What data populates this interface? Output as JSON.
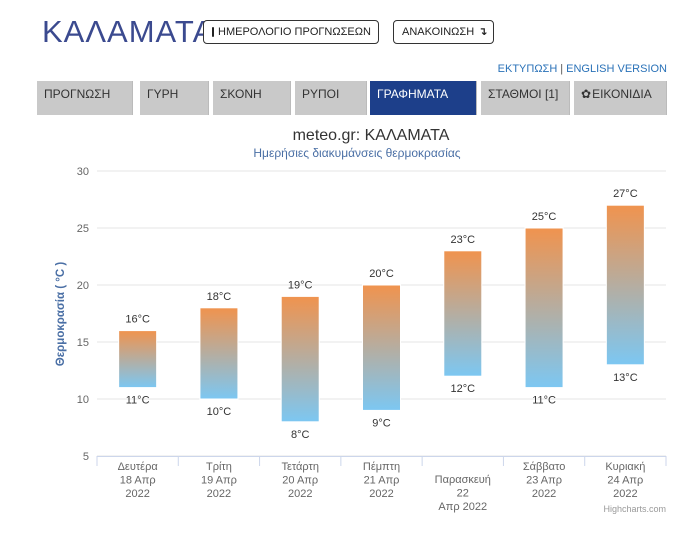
{
  "header": {
    "city": "ΚΑΛΑΜΑΤΑ",
    "calendar_button": "ΗΜΕΡΟΛΟΓΙΟ ΠΡΟΓΝΩΣΕΩΝ",
    "announce_button": "ΑΝΑΚΟΙΝΩΣΗ",
    "print_link": "ΕΚΤΥΠΩΣΗ",
    "link_separator": "|",
    "english_link": "ENGLISH VERSION"
  },
  "nav": {
    "items": [
      {
        "label": "ΠΡΟΓΝΩΣΗ"
      },
      {
        "label": "ΓΥΡΗ"
      },
      {
        "label": "ΣΚΟΝΗ"
      },
      {
        "label": "ΡΥΠΟΙ"
      },
      {
        "label": "ΓΡΑΦΗΜΑΤΑ"
      },
      {
        "label": "ΣΤΑΘΜΟΙ [1]"
      },
      {
        "label": "ΕΙΚΟΝΙΔΙΑ"
      }
    ],
    "active_index": 4
  },
  "chart_data": {
    "type": "bar",
    "title": "meteo.gr: ΚΑΛΑΜΑΤΑ",
    "subtitle": "Ημερήσιες διακυμάνσεις θερμοκρασίας",
    "ylabel": "Θερμοκρασία ( °C )",
    "ylim": [
      5,
      30
    ],
    "yticks": [
      "5",
      "10",
      "15",
      "20",
      "25",
      "30"
    ],
    "categories": [
      [
        "Δευτέρα",
        "18 Απρ",
        "2022"
      ],
      [
        "Τρίτη",
        "19 Απρ",
        "2022"
      ],
      [
        "Τετάρτη",
        "20 Απρ",
        "2022"
      ],
      [
        "Πέμπτη",
        "21 Απρ",
        "2022"
      ],
      [
        "Παρασκευή",
        "22",
        "Απρ 2022"
      ],
      [
        "Σάββατο",
        "23 Απρ",
        "2022"
      ],
      [
        "Κυριακή",
        "24 Απρ",
        "2022"
      ]
    ],
    "series": [
      {
        "min": [
          11,
          10,
          8,
          9,
          12,
          11,
          13
        ],
        "max": [
          16,
          18,
          19,
          20,
          23,
          25,
          27
        ]
      }
    ],
    "label_suffix": "°C",
    "colors": {
      "top": "#f0934e",
      "bottom": "#7cc7f2"
    },
    "grid": true,
    "credits": "Highcharts.com"
  }
}
